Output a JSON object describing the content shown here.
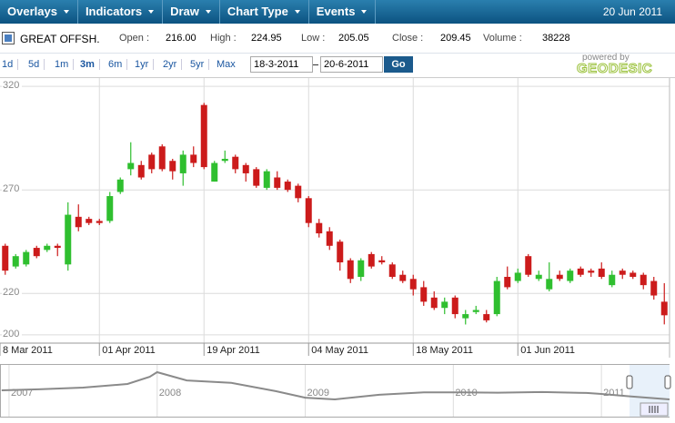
{
  "toolbar": {
    "menus": [
      "Overlays",
      "Indicators",
      "Draw",
      "Chart Type",
      "Events"
    ],
    "date": "20 Jun 2011"
  },
  "quote": {
    "symbol": "GREAT OFFSH.",
    "fields": [
      {
        "label": "Open :",
        "value": "216.00"
      },
      {
        "label": "High :",
        "value": "224.95"
      },
      {
        "label": "Low :",
        "value": "205.05"
      },
      {
        "label": "Close :",
        "value": "209.45"
      },
      {
        "label": "Volume :",
        "value": "38228"
      }
    ]
  },
  "range": {
    "periods": [
      "1d",
      "5d",
      "1m",
      "3m",
      "6m",
      "1yr",
      "2yr",
      "5yr",
      "Max"
    ],
    "selected": "3m",
    "from": "18-3-2011",
    "to": "20-6-2011",
    "button": "Go",
    "powered": "powered by",
    "brand": "GEODESIC"
  },
  "chart_data": [
    {
      "type": "candlestick",
      "categories": [
        "8 Mar 2011",
        null,
        null,
        null,
        null,
        null,
        null,
        null,
        null,
        "01 Apr 2011",
        null,
        null,
        null,
        null,
        null,
        null,
        null,
        null,
        null,
        "19 Apr 2011",
        null,
        null,
        null,
        null,
        null,
        null,
        null,
        null,
        null,
        "04 May 2011",
        null,
        null,
        null,
        null,
        null,
        null,
        null,
        null,
        null,
        "18 May 2011",
        null,
        null,
        null,
        null,
        null,
        null,
        null,
        null,
        null,
        "01 Jun 2011",
        null,
        null,
        null,
        null,
        null,
        null,
        null,
        null,
        null,
        null,
        null,
        null,
        null,
        null
      ],
      "open": [
        243,
        233,
        234,
        242,
        241,
        243,
        234,
        257,
        256,
        255,
        255,
        269,
        280,
        282,
        287,
        291,
        284,
        278,
        287,
        311,
        274,
        284,
        286,
        282,
        280,
        271,
        276,
        274,
        272,
        266,
        254,
        250,
        245,
        236,
        228,
        239,
        236,
        234,
        229,
        227,
        223,
        218,
        213,
        218,
        208,
        211,
        210,
        210,
        228,
        226,
        238,
        227,
        222,
        229,
        226,
        232,
        231,
        232,
        224,
        231,
        230,
        229,
        226,
        216
      ],
      "high": [
        244,
        239,
        241,
        243,
        244,
        244,
        264,
        263,
        257,
        256,
        269,
        276,
        293,
        284,
        288,
        292,
        285,
        289,
        291,
        312,
        284,
        289,
        287,
        283,
        281,
        280,
        279,
        275,
        273,
        267,
        256,
        252,
        246,
        237,
        237,
        240,
        238,
        235,
        231,
        229,
        226,
        221,
        218,
        219,
        212,
        214,
        212,
        228,
        233,
        232,
        239,
        231,
        235,
        231,
        232,
        233,
        232,
        235,
        231,
        232,
        231,
        230,
        228,
        224.95
      ],
      "low": [
        229,
        232,
        233,
        237,
        240,
        238,
        231,
        250,
        253,
        253,
        254,
        268,
        277,
        275,
        278,
        279,
        275,
        272,
        281,
        280,
        274,
        283,
        278,
        274,
        271,
        270,
        270,
        269,
        264,
        252,
        247,
        241,
        231,
        225,
        226,
        232,
        234,
        227,
        225,
        219,
        214,
        212,
        210,
        208,
        205,
        210,
        206,
        209,
        222,
        225,
        228,
        226,
        221,
        226,
        225,
        228,
        228,
        227,
        223,
        227,
        227,
        222,
        217,
        205.05
      ],
      "close": [
        231,
        238,
        240,
        238,
        243,
        242,
        258,
        252,
        254,
        254,
        267,
        275,
        283,
        276,
        280,
        280,
        279,
        287,
        283,
        281,
        283,
        285,
        280,
        278,
        272,
        279,
        271,
        270,
        266,
        254,
        249,
        243,
        235,
        227,
        236,
        233,
        235,
        228,
        226,
        222,
        216,
        213,
        216,
        210,
        210,
        212,
        207,
        226,
        223,
        230,
        229,
        229,
        227,
        227,
        231,
        229,
        230,
        228,
        229,
        229,
        228,
        224,
        219,
        209.45
      ],
      "up_color": "#2fbf2f",
      "down_color": "#cc1b1b",
      "ylim": [
        196,
        324
      ],
      "yticks": [
        320,
        270,
        220,
        200
      ],
      "grid": true
    },
    {
      "type": "line",
      "color": "#8a8a8a",
      "x": [
        2006.95,
        2007.2,
        2007.5,
        2007.8,
        2007.95,
        2008.0,
        2008.2,
        2008.5,
        2008.8,
        2009.0,
        2009.2,
        2009.5,
        2009.8,
        2010.0,
        2010.3,
        2010.6,
        2010.9,
        2011.0,
        2011.2,
        2011.46
      ],
      "values": [
        274,
        290,
        320,
        380,
        500,
        578,
        440,
        400,
        260,
        150,
        122,
        200,
        240,
        240,
        235,
        245,
        230,
        213,
        170,
        122
      ],
      "xlim": [
        2006.945,
        2011.46
      ],
      "ylim": [
        0,
        700
      ],
      "xticks": [
        2007,
        2008,
        2009,
        2010,
        2011
      ]
    }
  ]
}
